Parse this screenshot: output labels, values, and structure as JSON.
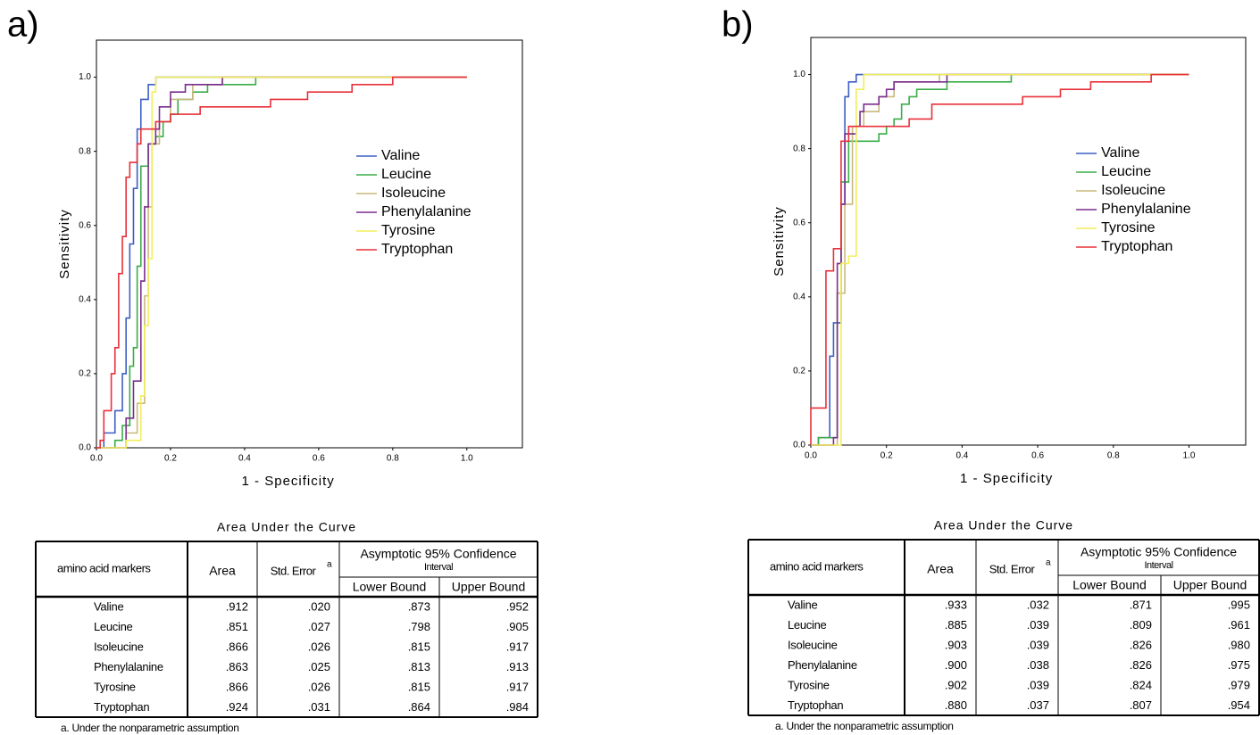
{
  "panel_labels": [
    "a)",
    "b)"
  ],
  "chart_data": [
    {
      "type": "line",
      "x_label": "1 - Specificity",
      "y_label": "Sensitivity",
      "grid": false,
      "legend_position": "right",
      "xlim": [
        0,
        1.15
      ],
      "ylim": [
        0,
        1.1
      ],
      "xticks": [
        {
          "value": 0,
          "label": "0.0"
        },
        0.2,
        0.4,
        0.6,
        0.8,
        {
          "value": 1,
          "label": "1.0"
        }
      ],
      "yticks": [
        {
          "value": 0,
          "label": "0.0"
        },
        0.2,
        0.4,
        0.6,
        0.8,
        {
          "value": 1,
          "label": "1.0"
        }
      ],
      "series": [
        {
          "name": "Valine",
          "color": "#3d5fc4",
          "x": [
            0,
            0.02,
            0.02,
            0.05,
            0.05,
            0.07,
            0.07,
            0.08,
            0.08,
            0.09,
            0.09,
            0.1,
            0.1,
            0.11,
            0.11,
            0.12,
            0.12,
            0.14,
            0.14,
            0.16,
            0.16,
            1
          ],
          "values": [
            0,
            0,
            0.04,
            0.04,
            0.1,
            0.1,
            0.2,
            0.2,
            0.35,
            0.35,
            0.55,
            0.55,
            0.7,
            0.7,
            0.86,
            0.86,
            0.94,
            0.94,
            0.98,
            0.98,
            1,
            1
          ]
        },
        {
          "name": "Leucine",
          "color": "#3aad48",
          "x": [
            0,
            0.05,
            0.05,
            0.07,
            0.07,
            0.09,
            0.09,
            0.1,
            0.1,
            0.11,
            0.11,
            0.12,
            0.12,
            0.14,
            0.14,
            0.16,
            0.16,
            0.18,
            0.18,
            0.2,
            0.2,
            0.22,
            0.22,
            0.26,
            0.26,
            0.3,
            0.3,
            0.43,
            0.43,
            1
          ],
          "values": [
            0,
            0,
            0.02,
            0.02,
            0.06,
            0.06,
            0.22,
            0.22,
            0.27,
            0.27,
            0.49,
            0.49,
            0.76,
            0.76,
            0.82,
            0.82,
            0.84,
            0.84,
            0.88,
            0.88,
            0.9,
            0.9,
            0.94,
            0.94,
            0.96,
            0.96,
            0.98,
            0.98,
            1,
            1
          ]
        },
        {
          "name": "Isoleucine",
          "color": "#c9b97c",
          "x": [
            0,
            0.08,
            0.08,
            0.11,
            0.11,
            0.13,
            0.13,
            0.14,
            0.14,
            0.15,
            0.15,
            0.17,
            0.17,
            0.2,
            0.2,
            0.26,
            0.26,
            0.34,
            0.34,
            1
          ],
          "values": [
            0,
            0,
            0.04,
            0.04,
            0.12,
            0.12,
            0.41,
            0.41,
            0.65,
            0.65,
            0.82,
            0.82,
            0.88,
            0.88,
            0.94,
            0.94,
            0.98,
            0.98,
            1,
            1
          ]
        },
        {
          "name": "Phenylalanine",
          "color": "#7b2d8e",
          "x": [
            0,
            0.08,
            0.08,
            0.1,
            0.1,
            0.12,
            0.12,
            0.13,
            0.13,
            0.14,
            0.14,
            0.16,
            0.16,
            0.17,
            0.17,
            0.2,
            0.2,
            0.24,
            0.24,
            0.34,
            0.34,
            1
          ],
          "values": [
            0,
            0,
            0.08,
            0.08,
            0.18,
            0.18,
            0.45,
            0.45,
            0.65,
            0.65,
            0.82,
            0.82,
            0.86,
            0.86,
            0.92,
            0.92,
            0.96,
            0.96,
            0.98,
            0.98,
            1,
            1
          ]
        },
        {
          "name": "Tyrosine",
          "color": "#f2ee5c",
          "x": [
            0,
            0.08,
            0.08,
            0.12,
            0.12,
            0.13,
            0.13,
            0.14,
            0.14,
            0.15,
            0.15,
            0.16,
            0.16,
            1
          ],
          "values": [
            0,
            0,
            0.02,
            0.02,
            0.14,
            0.14,
            0.33,
            0.33,
            0.51,
            0.51,
            0.96,
            0.96,
            1,
            1
          ]
        },
        {
          "name": "Tryptophan",
          "color": "#e8303a",
          "x": [
            0,
            0.01,
            0.01,
            0.02,
            0.02,
            0.04,
            0.04,
            0.05,
            0.05,
            0.06,
            0.06,
            0.07,
            0.07,
            0.08,
            0.08,
            0.09,
            0.09,
            0.11,
            0.11,
            0.12,
            0.12,
            0.16,
            0.16,
            0.2,
            0.2,
            0.28,
            0.28,
            0.47,
            0.47,
            0.57,
            0.57,
            0.69,
            0.69,
            0.8,
            0.8,
            1
          ],
          "values": [
            0,
            0,
            0.02,
            0.02,
            0.1,
            0.1,
            0.2,
            0.2,
            0.27,
            0.27,
            0.47,
            0.47,
            0.57,
            0.57,
            0.73,
            0.73,
            0.77,
            0.77,
            0.82,
            0.82,
            0.86,
            0.86,
            0.88,
            0.88,
            0.9,
            0.9,
            0.92,
            0.92,
            0.94,
            0.94,
            0.96,
            0.96,
            0.98,
            0.98,
            1,
            1
          ]
        }
      ]
    },
    {
      "type": "line",
      "x_label": "1 - Specificity",
      "y_label": "Sensitivity",
      "grid": false,
      "legend_position": "right",
      "xlim": [
        0,
        1.15
      ],
      "ylim": [
        0,
        1.1
      ],
      "xticks": [
        {
          "value": 0,
          "label": "0.0"
        },
        0.2,
        0.4,
        0.6,
        0.8,
        {
          "value": 1,
          "label": "1.0"
        }
      ],
      "yticks": [
        {
          "value": 0,
          "label": "0.0"
        },
        0.2,
        0.4,
        0.6,
        0.8,
        {
          "value": 1,
          "label": "1.0"
        }
      ],
      "series": [
        {
          "name": "Valine",
          "color": "#3d5fc4",
          "x": [
            0,
            0.02,
            0.02,
            0.05,
            0.05,
            0.06,
            0.06,
            0.08,
            0.08,
            0.09,
            0.09,
            0.1,
            0.1,
            0.12,
            0.12,
            1
          ],
          "values": [
            0,
            0,
            0.02,
            0.02,
            0.24,
            0.24,
            0.33,
            0.33,
            0.65,
            0.65,
            0.94,
            0.94,
            0.98,
            0.98,
            1,
            1
          ]
        },
        {
          "name": "Leucine",
          "color": "#3aad48",
          "x": [
            0,
            0.02,
            0.02,
            0.07,
            0.07,
            0.08,
            0.08,
            0.1,
            0.1,
            0.18,
            0.18,
            0.2,
            0.2,
            0.22,
            0.22,
            0.24,
            0.24,
            0.26,
            0.26,
            0.28,
            0.28,
            0.36,
            0.36,
            0.53,
            0.53,
            1
          ],
          "values": [
            0,
            0,
            0.02,
            0.02,
            0.41,
            0.41,
            0.71,
            0.71,
            0.82,
            0.82,
            0.84,
            0.84,
            0.86,
            0.86,
            0.88,
            0.88,
            0.92,
            0.92,
            0.94,
            0.94,
            0.96,
            0.96,
            0.98,
            0.98,
            1,
            1
          ]
        },
        {
          "name": "Isoleucine",
          "color": "#c9b97c",
          "x": [
            0,
            0.07,
            0.07,
            0.09,
            0.09,
            0.11,
            0.11,
            0.14,
            0.14,
            0.18,
            0.18,
            0.22,
            0.22,
            0.34,
            0.34,
            1
          ],
          "values": [
            0,
            0,
            0.41,
            0.41,
            0.65,
            0.65,
            0.86,
            0.86,
            0.9,
            0.9,
            0.94,
            0.94,
            0.98,
            0.98,
            1,
            1
          ]
        },
        {
          "name": "Phenylalanine",
          "color": "#7b2d8e",
          "x": [
            0,
            0.06,
            0.06,
            0.07,
            0.07,
            0.08,
            0.08,
            0.09,
            0.09,
            0.12,
            0.12,
            0.13,
            0.13,
            0.14,
            0.14,
            0.18,
            0.18,
            0.2,
            0.2,
            0.22,
            0.22,
            0.36,
            0.36,
            1
          ],
          "values": [
            0,
            0,
            0.02,
            0.02,
            0.49,
            0.49,
            0.65,
            0.65,
            0.84,
            0.84,
            0.86,
            0.86,
            0.9,
            0.9,
            0.92,
            0.92,
            0.94,
            0.94,
            0.96,
            0.96,
            0.98,
            0.98,
            1,
            1
          ]
        },
        {
          "name": "Tyrosine",
          "color": "#f2ee5c",
          "x": [
            0,
            0.08,
            0.08,
            0.1,
            0.1,
            0.12,
            0.12,
            0.14,
            0.14,
            1
          ],
          "values": [
            0,
            0,
            0.49,
            0.49,
            0.51,
            0.51,
            0.96,
            0.96,
            1,
            1
          ]
        },
        {
          "name": "Tryptophan",
          "color": "#e8303a",
          "x": [
            0,
            0,
            0.04,
            0.04,
            0.06,
            0.06,
            0.08,
            0.08,
            0.1,
            0.1,
            0.26,
            0.26,
            0.32,
            0.32,
            0.56,
            0.56,
            0.66,
            0.66,
            0.74,
            0.74,
            0.9,
            0.9,
            1
          ],
          "values": [
            0,
            0.1,
            0.1,
            0.47,
            0.47,
            0.53,
            0.53,
            0.82,
            0.82,
            0.86,
            0.86,
            0.88,
            0.88,
            0.92,
            0.92,
            0.94,
            0.94,
            0.96,
            0.96,
            0.98,
            0.98,
            1,
            1
          ]
        }
      ]
    }
  ],
  "tables": [
    {
      "title": "Area Under the Curve",
      "columns": [
        "amino acid markers",
        "Area",
        "Std. Error",
        "a"
      ],
      "group_header": [
        "Asymptotic 95% Confidence",
        "Interval"
      ],
      "subcolumns": [
        "Lower Bound",
        "Upper Bound"
      ],
      "rows": [
        [
          "Valine",
          ".912",
          ".020",
          ".873",
          ".952"
        ],
        [
          "Leucine",
          ".851",
          ".027",
          ".798",
          ".905"
        ],
        [
          "Isoleucine",
          ".866",
          ".026",
          ".815",
          ".917"
        ],
        [
          "Phenylalanine",
          ".863",
          ".025",
          ".813",
          ".913"
        ],
        [
          "Tyrosine",
          ".866",
          ".026",
          ".815",
          ".917"
        ],
        [
          "Tryptophan",
          ".924",
          ".031",
          ".864",
          ".984"
        ]
      ],
      "footnote": "a. Under the nonparametric assumption"
    },
    {
      "title": "Area Under the Curve",
      "columns": [
        "amino acid markers",
        "Area",
        "Std. Error",
        "a"
      ],
      "group_header": [
        "Asymptotic 95% Confidence",
        "Interval"
      ],
      "subcolumns": [
        "Lower Bound",
        "Upper Bound"
      ],
      "rows": [
        [
          "Valine",
          ".933",
          ".032",
          ".871",
          ".995"
        ],
        [
          "Leucine",
          ".885",
          ".039",
          ".809",
          ".961"
        ],
        [
          "Isoleucine",
          ".903",
          ".039",
          ".826",
          ".980"
        ],
        [
          "Phenylalanine",
          ".900",
          ".038",
          ".826",
          ".975"
        ],
        [
          "Tyrosine",
          ".902",
          ".039",
          ".824",
          ".979"
        ],
        [
          "Tryptophan",
          ".880",
          ".037",
          ".807",
          ".954"
        ]
      ],
      "footnote": "a. Under the nonparametric assumption"
    }
  ]
}
